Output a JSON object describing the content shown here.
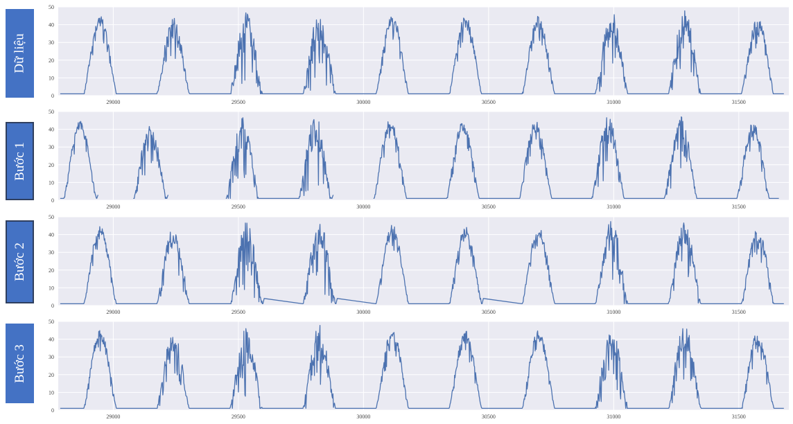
{
  "row_labels": [
    "Dữ liệu",
    "Bước 1",
    "Bước 2",
    "Bước 3"
  ],
  "colors": {
    "label_bg": "#4472c4",
    "plot_bg": "#eaeaf2",
    "grid": "#ffffff",
    "line": "#4c72b0"
  },
  "chart_data": [
    {
      "type": "line",
      "name": "Dữ liệu",
      "xlim": [
        28780,
        31700
      ],
      "ylim": [
        0,
        50
      ],
      "xticks": [
        29000,
        29500,
        30000,
        30500,
        31000,
        31500
      ],
      "yticks": [
        0,
        10,
        20,
        30,
        40,
        50
      ],
      "gap_after_days": [],
      "days": [
        {
          "start": 28880,
          "peak": 45,
          "amp": 6
        },
        {
          "start": 29172,
          "peak": 44,
          "amp": 12
        },
        {
          "start": 29464,
          "peak": 47,
          "amp": 18
        },
        {
          "start": 29756,
          "peak": 48,
          "amp": 18
        },
        {
          "start": 30048,
          "peak": 46,
          "amp": 7
        },
        {
          "start": 30340,
          "peak": 45,
          "amp": 7
        },
        {
          "start": 30632,
          "peak": 45,
          "amp": 7
        },
        {
          "start": 30924,
          "peak": 48,
          "amp": 16
        },
        {
          "start": 31216,
          "peak": 48,
          "amp": 14
        },
        {
          "start": 31508,
          "peak": 44,
          "amp": 8
        }
      ],
      "x_end": 31680
    },
    {
      "type": "line",
      "name": "Bước 1",
      "xlim": [
        28780,
        31700
      ],
      "ylim": [
        0,
        50
      ],
      "xticks": [
        29000,
        29500,
        30000,
        30500,
        31000,
        31500
      ],
      "yticks": [
        0,
        10,
        20,
        30,
        40,
        50
      ],
      "gap_after_days": [
        0,
        1,
        3
      ],
      "days": [
        {
          "start": 28800,
          "peak": 45,
          "amp": 6
        },
        {
          "start": 29080,
          "peak": 44,
          "amp": 12
        },
        {
          "start": 29450,
          "peak": 47,
          "amp": 18
        },
        {
          "start": 29740,
          "peak": 48,
          "amp": 18
        },
        {
          "start": 30040,
          "peak": 46,
          "amp": 7
        },
        {
          "start": 30330,
          "peak": 45,
          "amp": 7
        },
        {
          "start": 30620,
          "peak": 45,
          "amp": 7
        },
        {
          "start": 30910,
          "peak": 48,
          "amp": 16
        },
        {
          "start": 31200,
          "peak": 48,
          "amp": 14
        },
        {
          "start": 31490,
          "peak": 44,
          "amp": 8
        }
      ],
      "x_end": 31660
    },
    {
      "type": "line",
      "name": "Bước 2",
      "xlim": [
        28780,
        31700
      ],
      "ylim": [
        0,
        50
      ],
      "xticks": [
        29000,
        29500,
        30000,
        30500,
        31000,
        31500
      ],
      "yticks": [
        0,
        10,
        20,
        30,
        40,
        50
      ],
      "gap_after_days": [],
      "interp_after_days": [
        2,
        3,
        5
      ],
      "days": [
        {
          "start": 28880,
          "peak": 45,
          "amp": 6
        },
        {
          "start": 29172,
          "peak": 44,
          "amp": 12
        },
        {
          "start": 29464,
          "peak": 47,
          "amp": 18
        },
        {
          "start": 29756,
          "peak": 48,
          "amp": 18
        },
        {
          "start": 30048,
          "peak": 46,
          "amp": 7
        },
        {
          "start": 30340,
          "peak": 45,
          "amp": 7
        },
        {
          "start": 30632,
          "peak": 45,
          "amp": 7
        },
        {
          "start": 30924,
          "peak": 48,
          "amp": 16
        },
        {
          "start": 31216,
          "peak": 48,
          "amp": 14
        },
        {
          "start": 31508,
          "peak": 44,
          "amp": 8
        }
      ],
      "x_end": 31680
    },
    {
      "type": "line",
      "name": "Bước 3",
      "xlim": [
        28780,
        31700
      ],
      "ylim": [
        0,
        50
      ],
      "xticks": [
        29000,
        29500,
        30000,
        30500,
        31000,
        31500
      ],
      "yticks": [
        0,
        10,
        20,
        30,
        40,
        50
      ],
      "gap_after_days": [],
      "days": [
        {
          "start": 28880,
          "peak": 45,
          "amp": 6
        },
        {
          "start": 29172,
          "peak": 44,
          "amp": 12
        },
        {
          "start": 29464,
          "peak": 47,
          "amp": 18
        },
        {
          "start": 29756,
          "peak": 48,
          "amp": 18
        },
        {
          "start": 30048,
          "peak": 46,
          "amp": 7
        },
        {
          "start": 30340,
          "peak": 45,
          "amp": 7
        },
        {
          "start": 30632,
          "peak": 45,
          "amp": 7
        },
        {
          "start": 30924,
          "peak": 48,
          "amp": 16
        },
        {
          "start": 31216,
          "peak": 48,
          "amp": 14
        },
        {
          "start": 31508,
          "peak": 44,
          "amp": 8
        }
      ],
      "x_end": 31680
    }
  ]
}
